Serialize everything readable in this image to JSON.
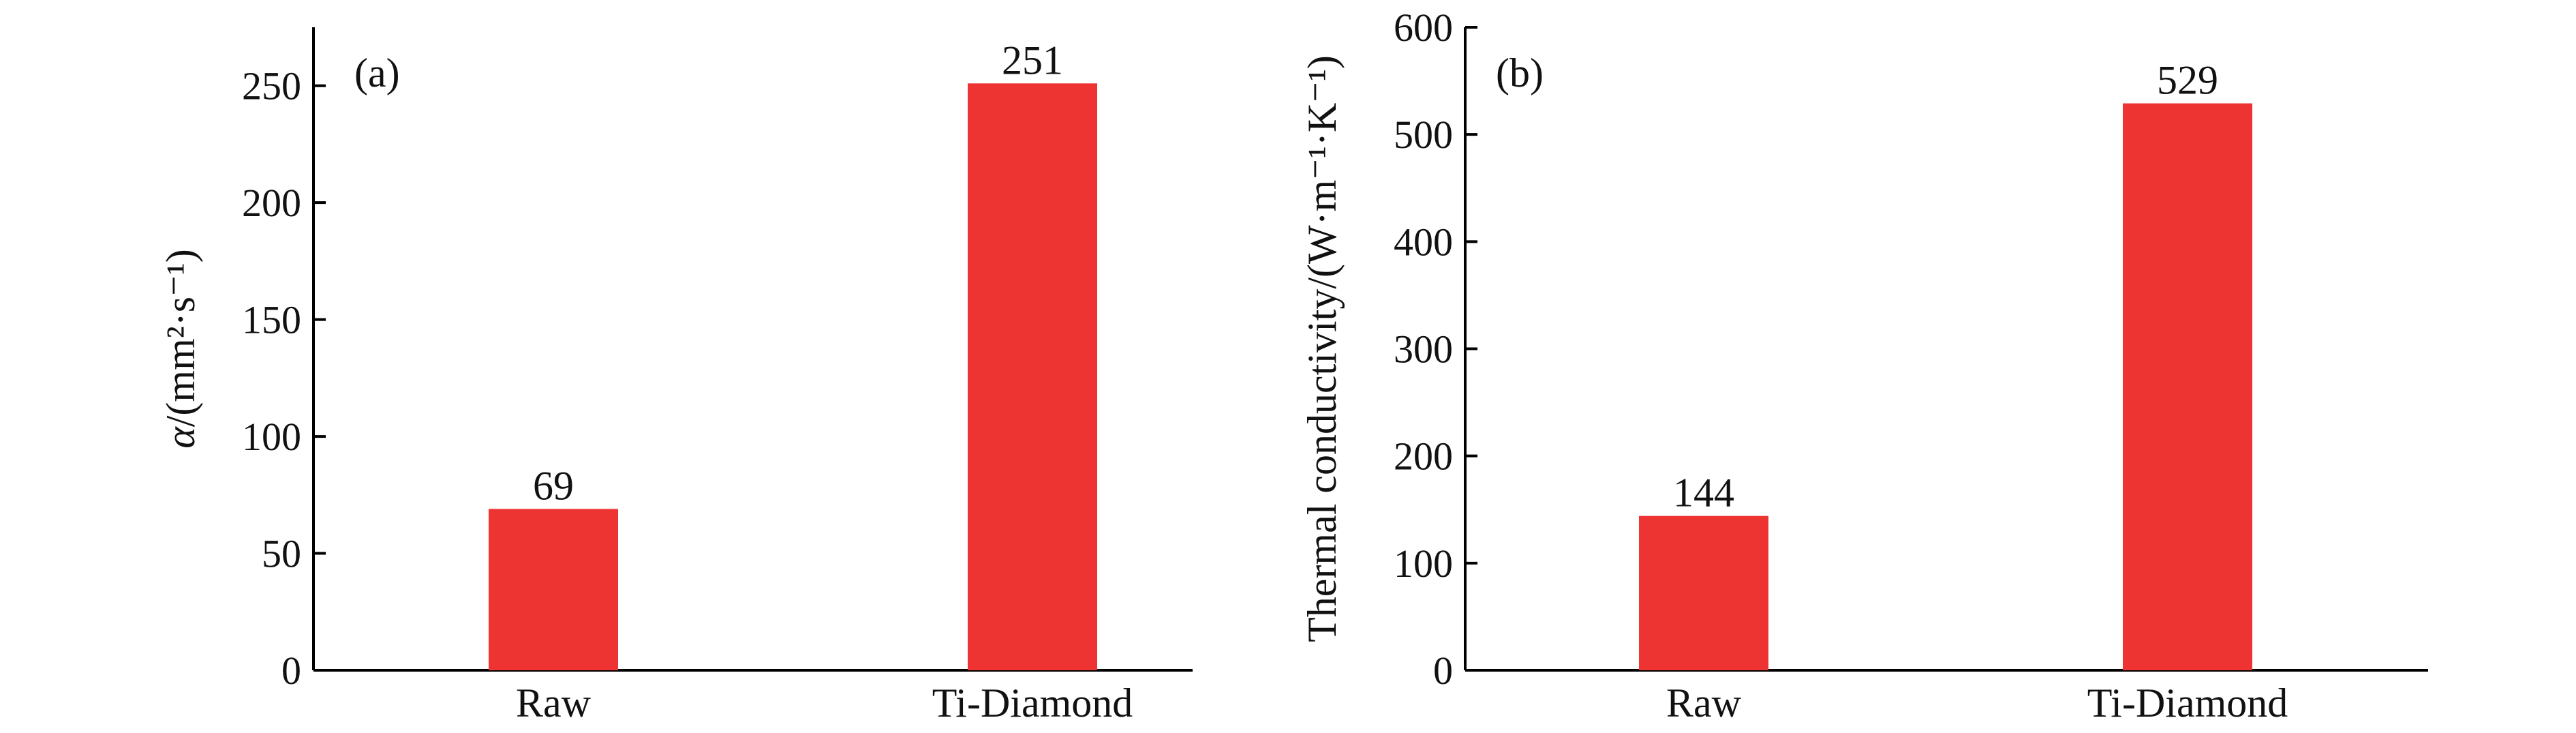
{
  "chart_data": [
    {
      "type": "bar",
      "panel_label": "(a)",
      "categories": [
        "Raw",
        "Ti-Diamond"
      ],
      "values": [
        69,
        251
      ],
      "data_labels": [
        "69",
        "251"
      ],
      "ylabel_symbol": "α",
      "ylabel_rest": "/(mm²·s⁻¹)",
      "ylim": [
        0,
        275
      ],
      "yticks": [
        0,
        50,
        100,
        150,
        200,
        250
      ],
      "bar_color": "#ee3333",
      "grid": false,
      "legend": "none"
    },
    {
      "type": "bar",
      "panel_label": "(b)",
      "categories": [
        "Raw",
        "Ti-Diamond"
      ],
      "values": [
        144,
        529
      ],
      "data_labels": [
        "144",
        "529"
      ],
      "ylabel": "Thermal conductivity/(W·m⁻¹·K⁻¹)",
      "ylim": [
        0,
        600
      ],
      "yticks": [
        0,
        100,
        200,
        300,
        400,
        500,
        600
      ],
      "bar_color": "#ee3333",
      "grid": false,
      "legend": "none"
    }
  ]
}
